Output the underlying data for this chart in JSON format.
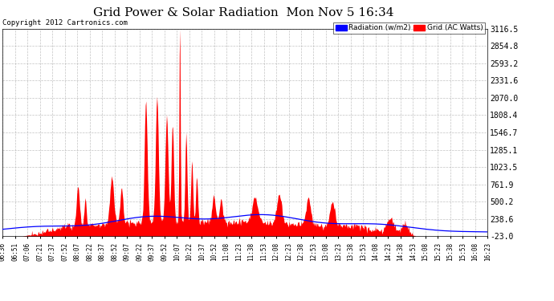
{
  "title": "Grid Power & Solar Radiation  Mon Nov 5 16:34",
  "copyright": "Copyright 2012 Cartronics.com",
  "legend_labels": [
    "Radiation (w/m2)",
    "Grid (AC Watts)"
  ],
  "legend_colors": [
    "#0000ff",
    "#ff0000"
  ],
  "y_ticks": [
    3116.5,
    2854.8,
    2593.2,
    2331.6,
    2070.0,
    1808.4,
    1546.7,
    1285.1,
    1023.5,
    761.9,
    500.2,
    238.6,
    -23.0
  ],
  "ylim": [
    -23.0,
    3116.5
  ],
  "background_color": "#ffffff",
  "plot_bg_color": "#ffffff",
  "grid_color": "#aaaaaa",
  "x_labels": [
    "06:36",
    "06:51",
    "07:06",
    "07:21",
    "07:37",
    "07:52",
    "08:07",
    "08:22",
    "08:37",
    "08:52",
    "09:07",
    "09:22",
    "09:37",
    "09:52",
    "10:07",
    "10:22",
    "10:37",
    "10:52",
    "11:08",
    "11:23",
    "11:38",
    "11:53",
    "12:08",
    "12:23",
    "12:38",
    "12:53",
    "13:08",
    "13:23",
    "13:38",
    "13:53",
    "14:08",
    "14:23",
    "14:38",
    "14:53",
    "15:08",
    "15:23",
    "15:38",
    "15:53",
    "16:08",
    "16:23"
  ]
}
